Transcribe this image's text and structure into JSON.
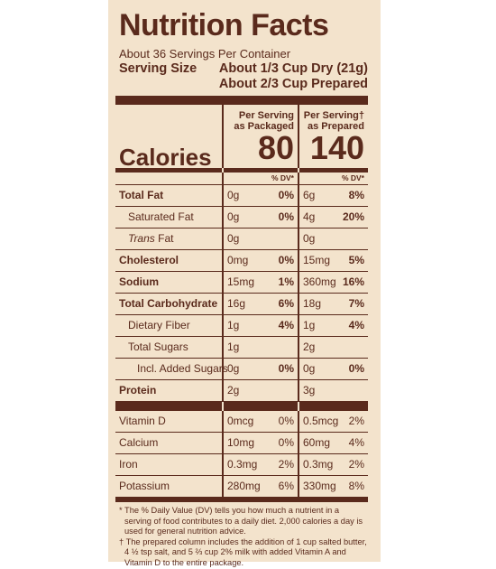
{
  "title": "Nutrition Facts",
  "servings_per_container": "About 36 Servings Per Container",
  "serving_size": {
    "label": "Serving Size",
    "dry": "About 1/3 Cup Dry (21g)",
    "prepared": "About 2/3 Cup Prepared"
  },
  "columns": {
    "packaged_header_1": "Per Serving",
    "packaged_header_2": "as Packaged",
    "prepared_header_1": "Per Serving†",
    "prepared_header_2": "as Prepared"
  },
  "calories": {
    "label": "Calories",
    "packaged": "80",
    "prepared": "140"
  },
  "dv_label": "% DV*",
  "nutrients": [
    {
      "name": "Total Fat",
      "pk_amt": "0g",
      "pk_dv": "0%",
      "pr_amt": "6g",
      "pr_dv": "8%"
    },
    {
      "name": "Saturated Fat",
      "pk_amt": "0g",
      "pk_dv": "0%",
      "pr_amt": "4g",
      "pr_dv": "20%"
    },
    {
      "name": "Trans",
      "name_suffix": " Fat",
      "pk_amt": "0g",
      "pk_dv": "",
      "pr_amt": "0g",
      "pr_dv": ""
    },
    {
      "name": "Cholesterol",
      "pk_amt": "0mg",
      "pk_dv": "0%",
      "pr_amt": "15mg",
      "pr_dv": "5%"
    },
    {
      "name": "Sodium",
      "pk_amt": "15mg",
      "pk_dv": "1%",
      "pr_amt": "360mg",
      "pr_dv": "16%"
    },
    {
      "name": "Total Carbohydrate",
      "pk_amt": "16g",
      "pk_dv": "6%",
      "pr_amt": "18g",
      "pr_dv": "7%"
    },
    {
      "name": "Dietary Fiber",
      "pk_amt": "1g",
      "pk_dv": "4%",
      "pr_amt": "1g",
      "pr_dv": "4%"
    },
    {
      "name": "Total Sugars",
      "pk_amt": "1g",
      "pk_dv": "",
      "pr_amt": "2g",
      "pr_dv": ""
    },
    {
      "name": "Incl. Added Sugars",
      "pk_amt": "0g",
      "pk_dv": "0%",
      "pr_amt": "0g",
      "pr_dv": "0%"
    },
    {
      "name": "Protein",
      "pk_amt": "2g",
      "pk_dv": "",
      "pr_amt": "3g",
      "pr_dv": ""
    }
  ],
  "vitamins": [
    {
      "name": "Vitamin D",
      "pk_amt": "0mcg",
      "pk_dv": "0%",
      "pr_amt": "0.5mcg",
      "pr_dv": "2%"
    },
    {
      "name": "Calcium",
      "pk_amt": "10mg",
      "pk_dv": "0%",
      "pr_amt": "60mg",
      "pr_dv": "4%"
    },
    {
      "name": "Iron",
      "pk_amt": "0.3mg",
      "pk_dv": "2%",
      "pr_amt": "0.3mg",
      "pr_dv": "2%"
    },
    {
      "name": "Potassium",
      "pk_amt": "280mg",
      "pk_dv": "6%",
      "pr_amt": "330mg",
      "pr_dv": "8%"
    }
  ],
  "footnotes": [
    "* The % Daily Value (DV) tells you how much a nutrient in a serving of food contributes to a daily diet. 2,000 calories a day is used for general nutrition advice.",
    "† The prepared column includes the addition of 1 cup salted butter, 4 ½ tsp salt, and 5 ⅔ cup 2% milk with added Vitamin A and Vitamin D to the entire package."
  ],
  "colors": {
    "ink": "#5a2a1c",
    "panel": "#f3e3cc",
    "background": "#ffffff"
  }
}
